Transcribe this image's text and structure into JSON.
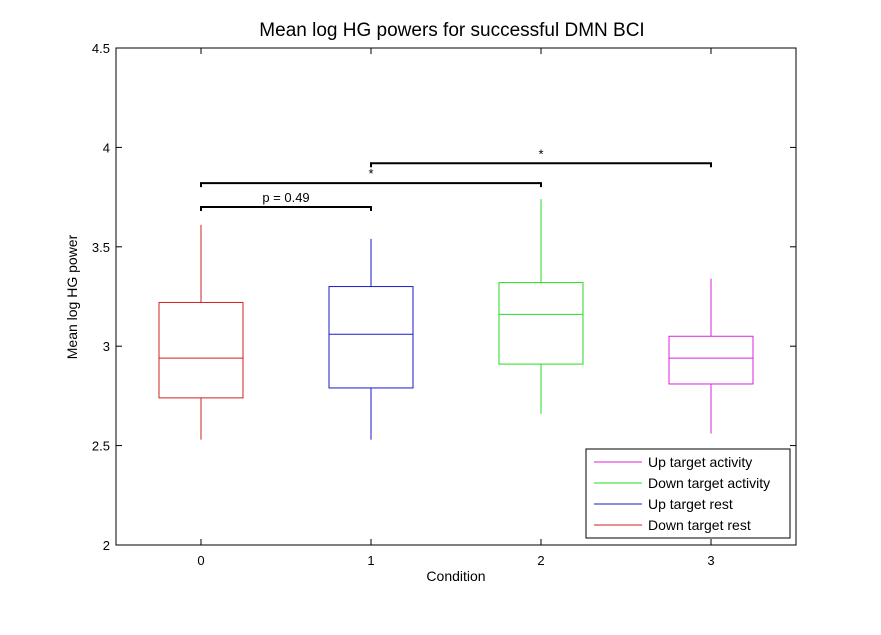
{
  "chart_data": {
    "type": "box",
    "title": "Mean log HG powers for successful DMN BCI",
    "xlabel": "Condition",
    "ylabel": "Mean log HG power",
    "xlim": [
      -0.5,
      3.5
    ],
    "ylim": [
      2,
      4.5
    ],
    "xticks": [
      0,
      1,
      2,
      3
    ],
    "xtick_labels": [
      "0",
      "1",
      "2",
      "3"
    ],
    "yticks": [
      2,
      2.5,
      3,
      3.5,
      4,
      4.5
    ],
    "ytick_labels": [
      "2",
      "2.5",
      "3",
      "3.5",
      "4",
      "4.5"
    ],
    "grid": false,
    "legend_position": "bottom-right",
    "boxes": [
      {
        "name": "Down target rest",
        "x": 0,
        "whisker_low": 2.53,
        "q1": 2.74,
        "median": 2.94,
        "q3": 3.22,
        "whisker_high": 3.61,
        "color": "#cc2222"
      },
      {
        "name": "Up target rest",
        "x": 1,
        "whisker_low": 2.53,
        "q1": 2.79,
        "median": 3.06,
        "q3": 3.3,
        "whisker_high": 3.54,
        "color": "#1a1acc"
      },
      {
        "name": "Down target activity",
        "x": 2,
        "whisker_low": 2.66,
        "q1": 2.91,
        "median": 3.16,
        "q3": 3.32,
        "whisker_high": 3.74,
        "color": "#22dd22"
      },
      {
        "name": "Up target activity",
        "x": 3,
        "whisker_low": 2.56,
        "q1": 2.81,
        "median": 2.94,
        "q3": 3.05,
        "whisker_high": 3.34,
        "color": "#dd22dd"
      }
    ],
    "legend_entries": [
      {
        "label": "Up target activity",
        "color": "#dd22dd"
      },
      {
        "label": "Down target activity",
        "color": "#22dd22"
      },
      {
        "label": "Up target rest",
        "color": "#1a1acc"
      },
      {
        "label": "Down target rest",
        "color": "#cc2222"
      }
    ],
    "annotations": [
      {
        "x1": 0,
        "x2": 1,
        "y": 3.7,
        "label": "p = 0.49"
      },
      {
        "x1": 0,
        "x2": 2,
        "y": 3.82,
        "label": "*"
      },
      {
        "x1": 1,
        "x2": 3,
        "y": 3.92,
        "label": "*"
      }
    ]
  }
}
